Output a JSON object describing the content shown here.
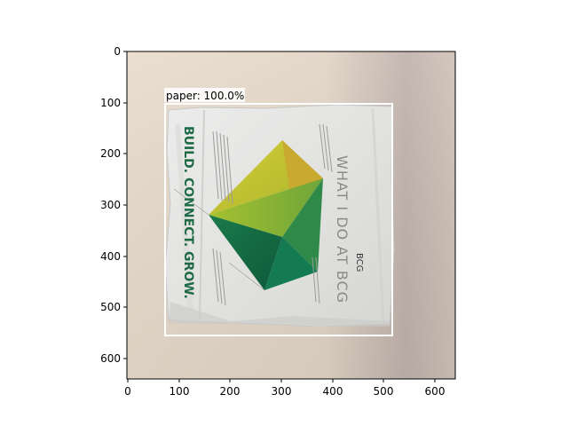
{
  "figure": {
    "detection_label": "paper: 100.0%",
    "x_ticks": [
      "0",
      "100",
      "200",
      "300",
      "400",
      "500",
      "600"
    ],
    "y_ticks": [
      "0",
      "100",
      "200",
      "300",
      "400",
      "500",
      "600"
    ],
    "box_color": "#ffffff",
    "label_bg": "#ffffff"
  },
  "photo": {
    "cover_title": "WHAT I DO AT BCG",
    "side_slogan": "BUILD. CONNECT. GROW.",
    "logo": "BCG"
  }
}
